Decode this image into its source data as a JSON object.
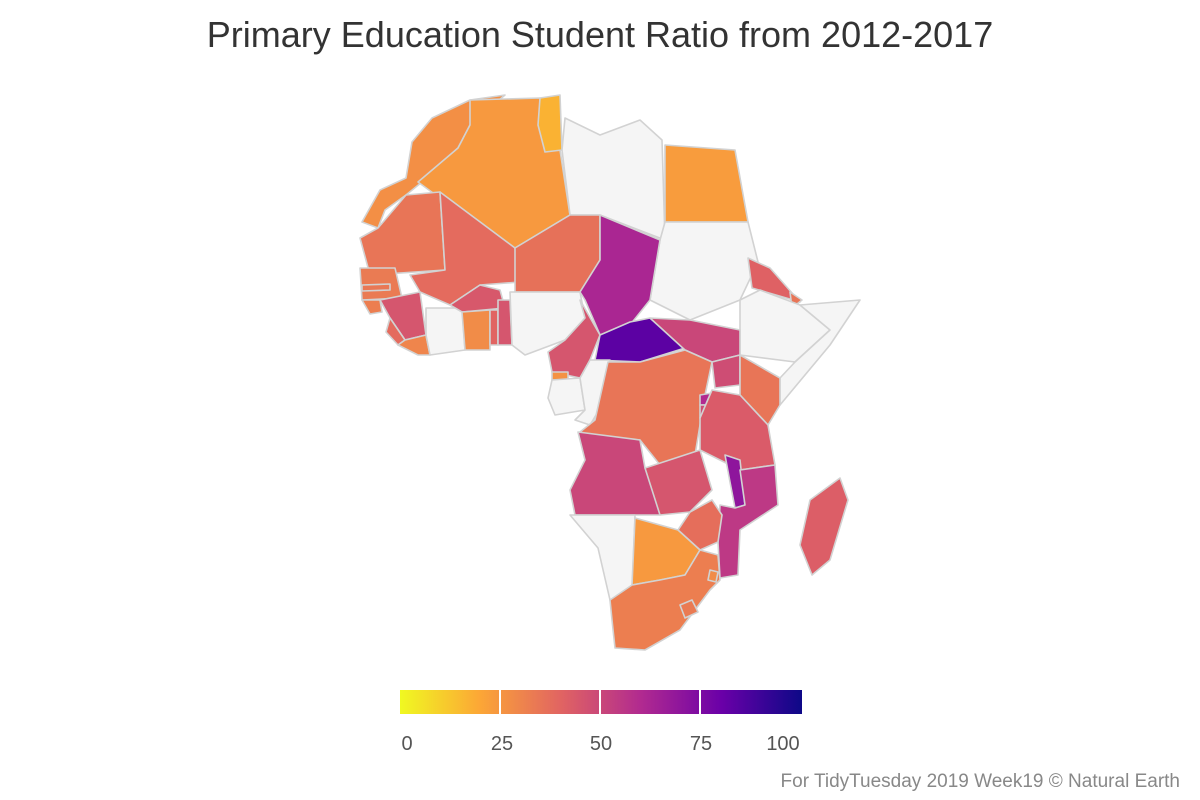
{
  "title": "Primary Education Student Ratio from 2012-2017",
  "credit": "For TidyTuesday 2019 Week19 © Natural Earth",
  "legend": {
    "min": 0,
    "max": 100,
    "ticks": [
      "0",
      "25",
      "50",
      "75",
      "100"
    ],
    "gradient": [
      "#f0f921",
      "#fca636",
      "#e16462",
      "#b12a90",
      "#6a00a8",
      "#0d0887"
    ],
    "no_data_color": "#f5f5f5"
  },
  "chart_data": {
    "type": "choropleth",
    "region": "Africa",
    "variable": "student ratio",
    "scale": {
      "min": 0,
      "max": 100
    },
    "values": {
      "Morocco": 27,
      "Algeria": 24,
      "Tunisia": 17,
      "Libya": null,
      "Egypt": 23,
      "Mauritania": 35,
      "Mali": 38,
      "Niger": 36,
      "Chad": 62,
      "Sudan": null,
      "Eritrea": 41,
      "Djibouti": 35,
      "Ethiopia": null,
      "Somalia": null,
      "Senegal": 33,
      "Gambia": 34,
      "Guinea-Bissau": 32,
      "Guinea": 45,
      "Sierra Leone": 38,
      "Liberia": 30,
      "Cote d'Ivoire": null,
      "Burkina Faso": 44,
      "Ghana": 28,
      "Togo": 40,
      "Benin": 45,
      "Nigeria": null,
      "Cameroon": 45,
      "Central African Republic": 83,
      "South Sudan": 50,
      "Uganda": 48,
      "Kenya": 35,
      "Rwanda": 60,
      "Burundi": 48,
      "Equatorial Guinea": 26,
      "Gabon": null,
      "Congo": null,
      "DR Congo": 35,
      "Tanzania": 43,
      "Angola": 50,
      "Zambia": 45,
      "Malawi": 70,
      "Mozambique": 55,
      "Zimbabwe": 37,
      "Namibia": null,
      "Botswana": 24,
      "South Africa": 32,
      "Lesotho": 33,
      "Eswatini": 28,
      "Madagascar": 42
    }
  }
}
